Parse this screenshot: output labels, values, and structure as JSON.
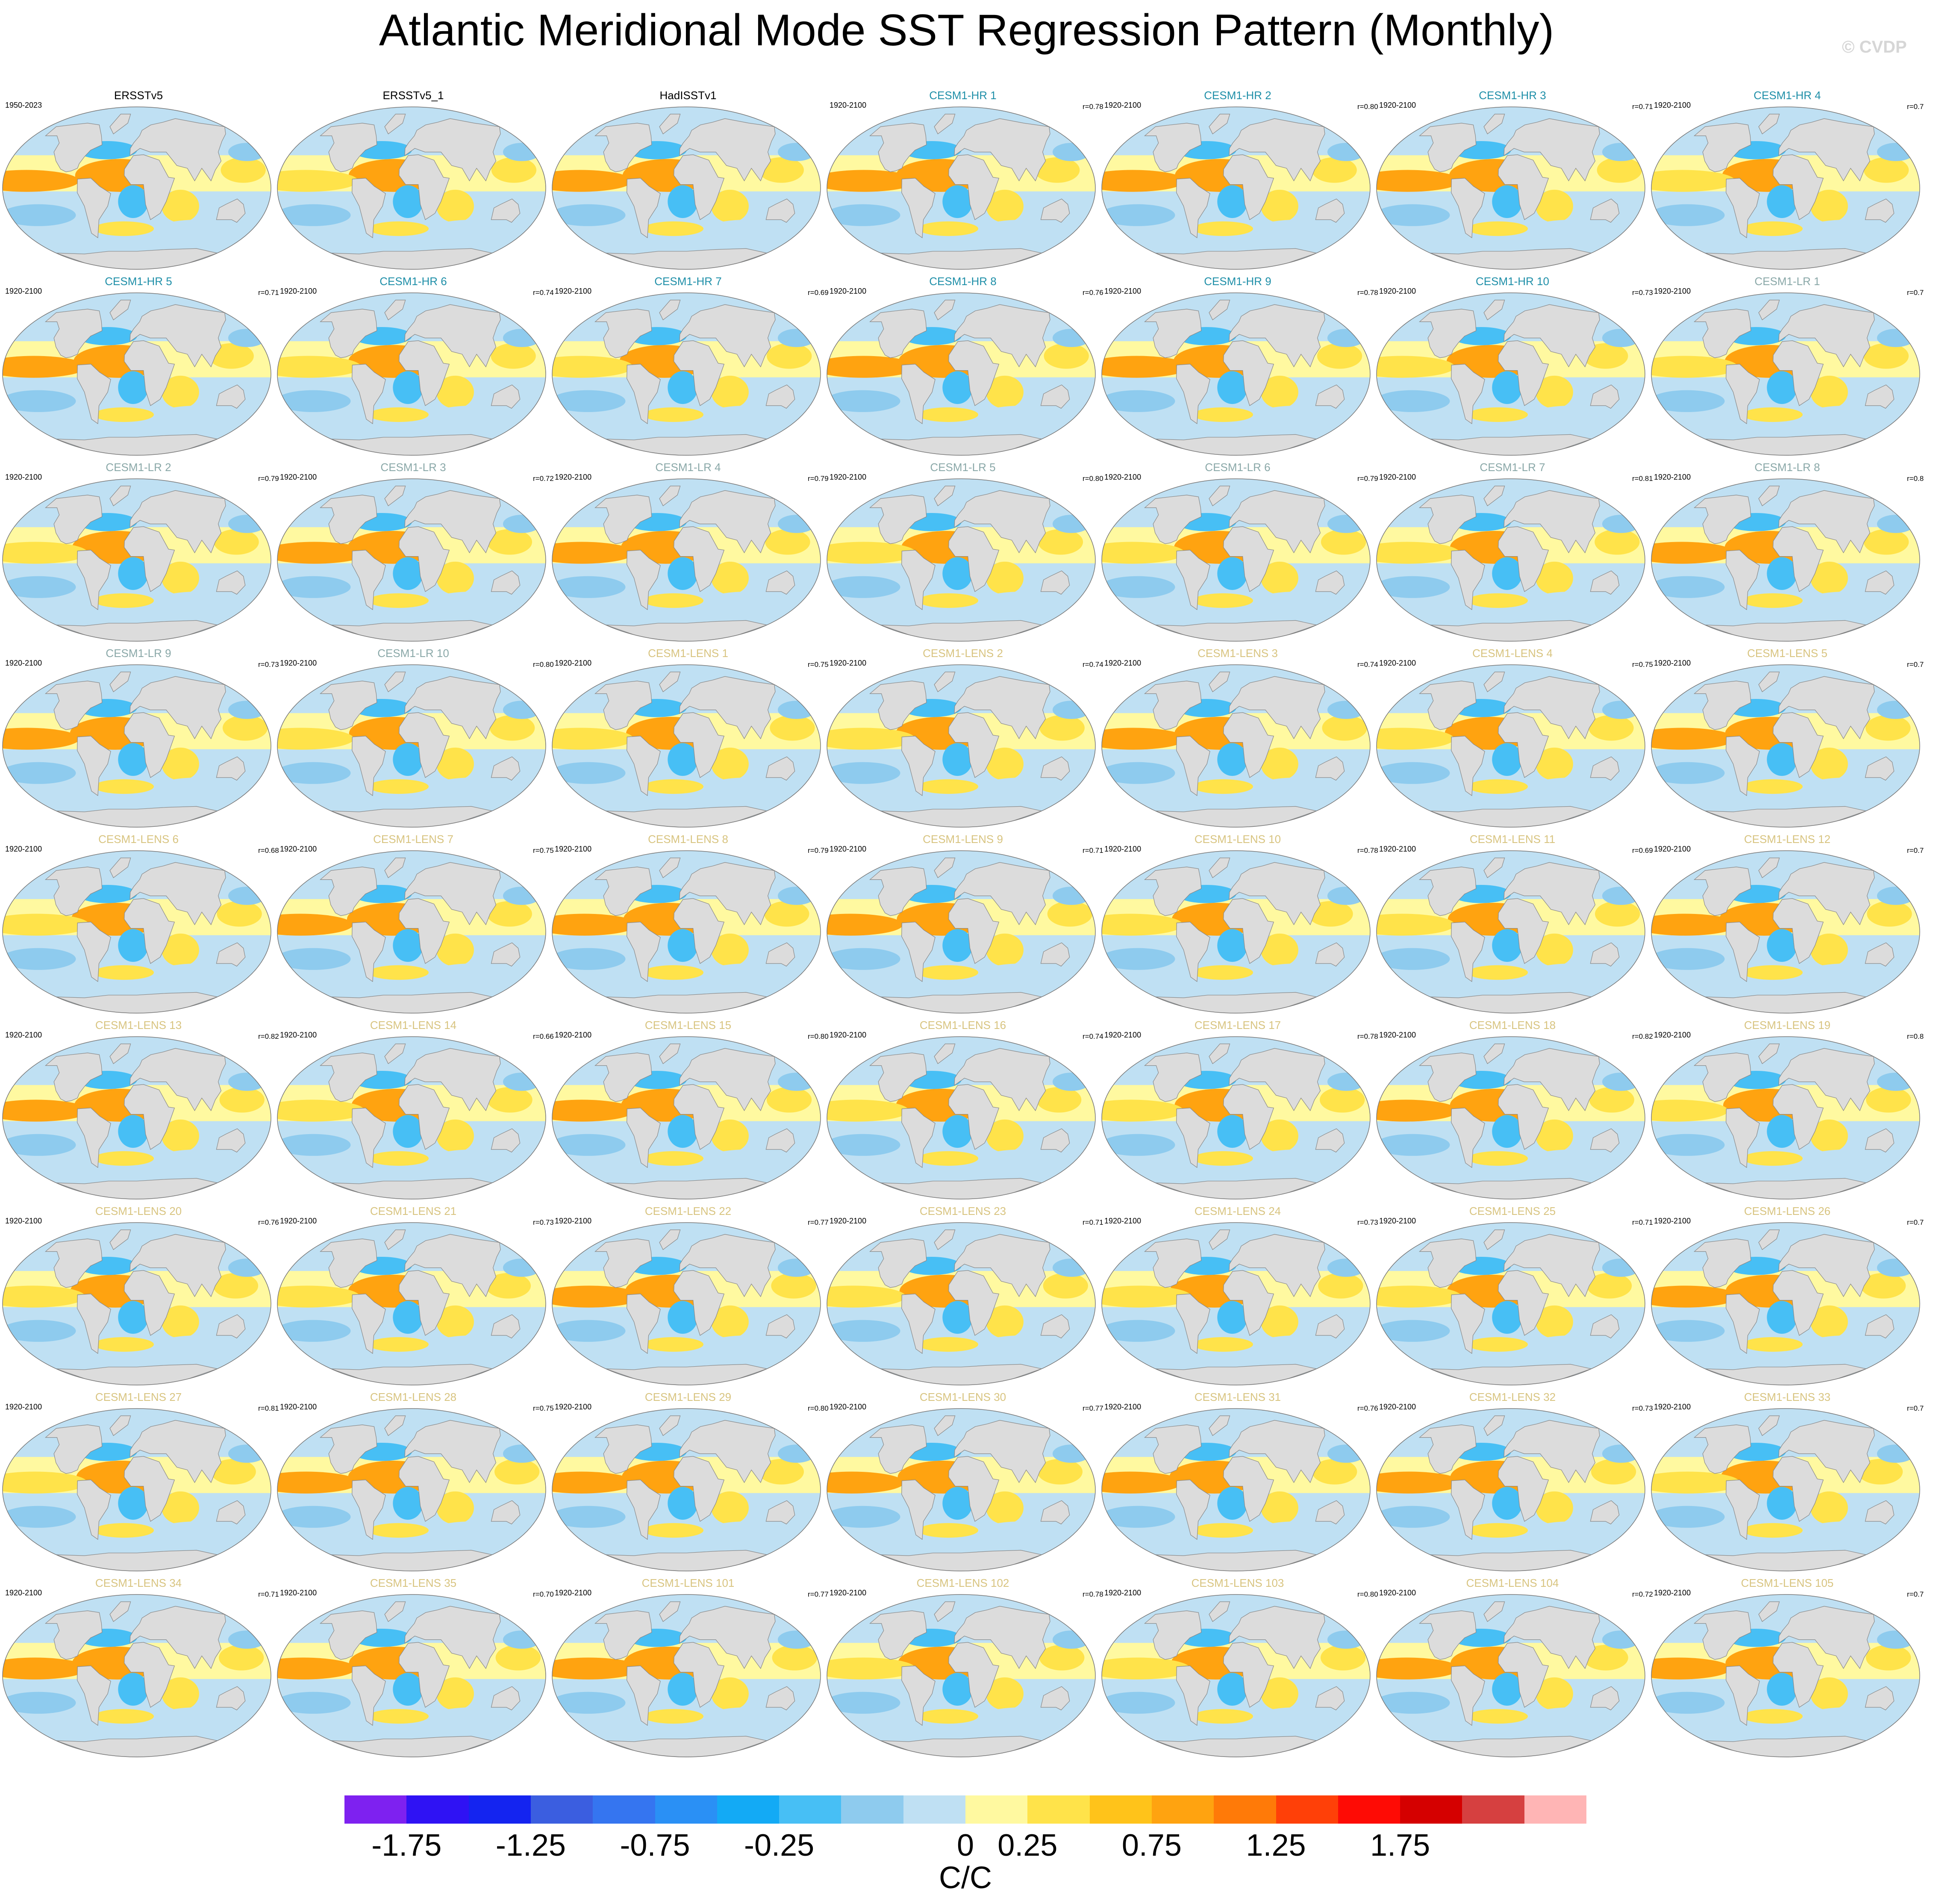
{
  "title": "Atlantic Meridional Mode SST Regression Pattern (Monthly)",
  "watermark": "© CVDP",
  "colors": {
    "obs_title": "#000000",
    "hr_title": "#1f8fa8",
    "lr_title": "#8aa8a8",
    "lens_title": "#d8c480",
    "land": "#dcdcdc",
    "coast": "#888888"
  },
  "colorbar": {
    "unit": "C/C",
    "colors": [
      "#7e21f0",
      "#2f12f4",
      "#1424f0",
      "#3b5ee0",
      "#3575f0",
      "#2a90f5",
      "#13aaf5",
      "#47bff5",
      "#8ecbee",
      "#bfe0f3",
      "#fff9a0",
      "#ffe34a",
      "#ffc31a",
      "#ffa310",
      "#ff7a08",
      "#ff4008",
      "#fe0b05",
      "#d50000",
      "#d64040",
      "#ffb5b5"
    ],
    "tick_labels": [
      "-1.75",
      "-1.25",
      "-0.75",
      "-0.25",
      "0",
      "0.25",
      "0.75",
      "1.25",
      "1.75"
    ]
  },
  "chart_data": {
    "type": "heatmap",
    "title": "Atlantic Meridional Mode SST Regression Pattern (Monthly)",
    "unit": "C/C",
    "panels": [
      {
        "title": "ERSSTv5",
        "period": "1950-2023",
        "r": "",
        "group": "obs"
      },
      {
        "title": "ERSSTv5_1",
        "period": "",
        "r": "",
        "group": "obs"
      },
      {
        "title": "HadISSTv1",
        "period": "",
        "r": "",
        "group": "obs"
      },
      {
        "title": "CESM1-HR 1",
        "period": "1920-2100",
        "r": "r=0.78",
        "group": "hr"
      },
      {
        "title": "CESM1-HR 2",
        "period": "1920-2100",
        "r": "r=0.80",
        "group": "hr"
      },
      {
        "title": "CESM1-HR 3",
        "period": "1920-2100",
        "r": "r=0.71",
        "group": "hr"
      },
      {
        "title": "CESM1-HR 4",
        "period": "1920-2100",
        "r": "r=0.7",
        "group": "hr"
      },
      {
        "title": "CESM1-HR 5",
        "period": "1920-2100",
        "r": "r=0.71",
        "group": "hr"
      },
      {
        "title": "CESM1-HR 6",
        "period": "1920-2100",
        "r": "r=0.74",
        "group": "hr"
      },
      {
        "title": "CESM1-HR 7",
        "period": "1920-2100",
        "r": "r=0.69",
        "group": "hr"
      },
      {
        "title": "CESM1-HR 8",
        "period": "1920-2100",
        "r": "r=0.76",
        "group": "hr"
      },
      {
        "title": "CESM1-HR 9",
        "period": "1920-2100",
        "r": "r=0.78",
        "group": "hr"
      },
      {
        "title": "CESM1-HR 10",
        "period": "1920-2100",
        "r": "r=0.73",
        "group": "hr"
      },
      {
        "title": "CESM1-LR 1",
        "period": "1920-2100",
        "r": "r=0.7",
        "group": "lr"
      },
      {
        "title": "CESM1-LR 2",
        "period": "1920-2100",
        "r": "r=0.79",
        "group": "lr"
      },
      {
        "title": "CESM1-LR 3",
        "period": "1920-2100",
        "r": "r=0.72",
        "group": "lr"
      },
      {
        "title": "CESM1-LR 4",
        "period": "1920-2100",
        "r": "r=0.79",
        "group": "lr"
      },
      {
        "title": "CESM1-LR 5",
        "period": "1920-2100",
        "r": "r=0.80",
        "group": "lr"
      },
      {
        "title": "CESM1-LR 6",
        "period": "1920-2100",
        "r": "r=0.79",
        "group": "lr"
      },
      {
        "title": "CESM1-LR 7",
        "period": "1920-2100",
        "r": "r=0.81",
        "group": "lr"
      },
      {
        "title": "CESM1-LR 8",
        "period": "1920-2100",
        "r": "r=0.8",
        "group": "lr"
      },
      {
        "title": "CESM1-LR 9",
        "period": "1920-2100",
        "r": "r=0.73",
        "group": "lr"
      },
      {
        "title": "CESM1-LR 10",
        "period": "1920-2100",
        "r": "r=0.80",
        "group": "lr"
      },
      {
        "title": "CESM1-LENS 1",
        "period": "1920-2100",
        "r": "r=0.75",
        "group": "lens"
      },
      {
        "title": "CESM1-LENS 2",
        "period": "1920-2100",
        "r": "r=0.74",
        "group": "lens"
      },
      {
        "title": "CESM1-LENS 3",
        "period": "1920-2100",
        "r": "r=0.74",
        "group": "lens"
      },
      {
        "title": "CESM1-LENS 4",
        "period": "1920-2100",
        "r": "r=0.75",
        "group": "lens"
      },
      {
        "title": "CESM1-LENS 5",
        "period": "1920-2100",
        "r": "r=0.7",
        "group": "lens"
      },
      {
        "title": "CESM1-LENS 6",
        "period": "1920-2100",
        "r": "r=0.68",
        "group": "lens"
      },
      {
        "title": "CESM1-LENS 7",
        "period": "1920-2100",
        "r": "r=0.75",
        "group": "lens"
      },
      {
        "title": "CESM1-LENS 8",
        "period": "1920-2100",
        "r": "r=0.79",
        "group": "lens"
      },
      {
        "title": "CESM1-LENS 9",
        "period": "1920-2100",
        "r": "r=0.71",
        "group": "lens"
      },
      {
        "title": "CESM1-LENS 10",
        "period": "1920-2100",
        "r": "r=0.78",
        "group": "lens"
      },
      {
        "title": "CESM1-LENS 11",
        "period": "1920-2100",
        "r": "r=0.69",
        "group": "lens"
      },
      {
        "title": "CESM1-LENS 12",
        "period": "1920-2100",
        "r": "r=0.7",
        "group": "lens"
      },
      {
        "title": "CESM1-LENS 13",
        "period": "1920-2100",
        "r": "r=0.82",
        "group": "lens"
      },
      {
        "title": "CESM1-LENS 14",
        "period": "1920-2100",
        "r": "r=0.66",
        "group": "lens"
      },
      {
        "title": "CESM1-LENS 15",
        "period": "1920-2100",
        "r": "r=0.80",
        "group": "lens"
      },
      {
        "title": "CESM1-LENS 16",
        "period": "1920-2100",
        "r": "r=0.74",
        "group": "lens"
      },
      {
        "title": "CESM1-LENS 17",
        "period": "1920-2100",
        "r": "r=0.78",
        "group": "lens"
      },
      {
        "title": "CESM1-LENS 18",
        "period": "1920-2100",
        "r": "r=0.82",
        "group": "lens"
      },
      {
        "title": "CESM1-LENS 19",
        "period": "1920-2100",
        "r": "r=0.8",
        "group": "lens"
      },
      {
        "title": "CESM1-LENS 20",
        "period": "1920-2100",
        "r": "r=0.76",
        "group": "lens"
      },
      {
        "title": "CESM1-LENS 21",
        "period": "1920-2100",
        "r": "r=0.73",
        "group": "lens"
      },
      {
        "title": "CESM1-LENS 22",
        "period": "1920-2100",
        "r": "r=0.77",
        "group": "lens"
      },
      {
        "title": "CESM1-LENS 23",
        "period": "1920-2100",
        "r": "r=0.71",
        "group": "lens"
      },
      {
        "title": "CESM1-LENS 24",
        "period": "1920-2100",
        "r": "r=0.73",
        "group": "lens"
      },
      {
        "title": "CESM1-LENS 25",
        "period": "1920-2100",
        "r": "r=0.71",
        "group": "lens"
      },
      {
        "title": "CESM1-LENS 26",
        "period": "1920-2100",
        "r": "r=0.7",
        "group": "lens"
      },
      {
        "title": "CESM1-LENS 27",
        "period": "1920-2100",
        "r": "r=0.81",
        "group": "lens"
      },
      {
        "title": "CESM1-LENS 28",
        "period": "1920-2100",
        "r": "r=0.75",
        "group": "lens"
      },
      {
        "title": "CESM1-LENS 29",
        "period": "1920-2100",
        "r": "r=0.80",
        "group": "lens"
      },
      {
        "title": "CESM1-LENS 30",
        "period": "1920-2100",
        "r": "r=0.77",
        "group": "lens"
      },
      {
        "title": "CESM1-LENS 31",
        "period": "1920-2100",
        "r": "r=0.76",
        "group": "lens"
      },
      {
        "title": "CESM1-LENS 32",
        "period": "1920-2100",
        "r": "r=0.73",
        "group": "lens"
      },
      {
        "title": "CESM1-LENS 33",
        "period": "1920-2100",
        "r": "r=0.7",
        "group": "lens"
      },
      {
        "title": "CESM1-LENS 34",
        "period": "1920-2100",
        "r": "r=0.71",
        "group": "lens"
      },
      {
        "title": "CESM1-LENS 35",
        "period": "1920-2100",
        "r": "r=0.70",
        "group": "lens"
      },
      {
        "title": "CESM1-LENS 101",
        "period": "1920-2100",
        "r": "r=0.77",
        "group": "lens"
      },
      {
        "title": "CESM1-LENS 102",
        "period": "1920-2100",
        "r": "r=0.78",
        "group": "lens"
      },
      {
        "title": "CESM1-LENS 103",
        "period": "1920-2100",
        "r": "r=0.80",
        "group": "lens"
      },
      {
        "title": "CESM1-LENS 104",
        "period": "1920-2100",
        "r": "r=0.72",
        "group": "lens"
      },
      {
        "title": "CESM1-LENS 105",
        "period": "1920-2100",
        "r": "r=0.7",
        "group": "lens"
      }
    ]
  }
}
